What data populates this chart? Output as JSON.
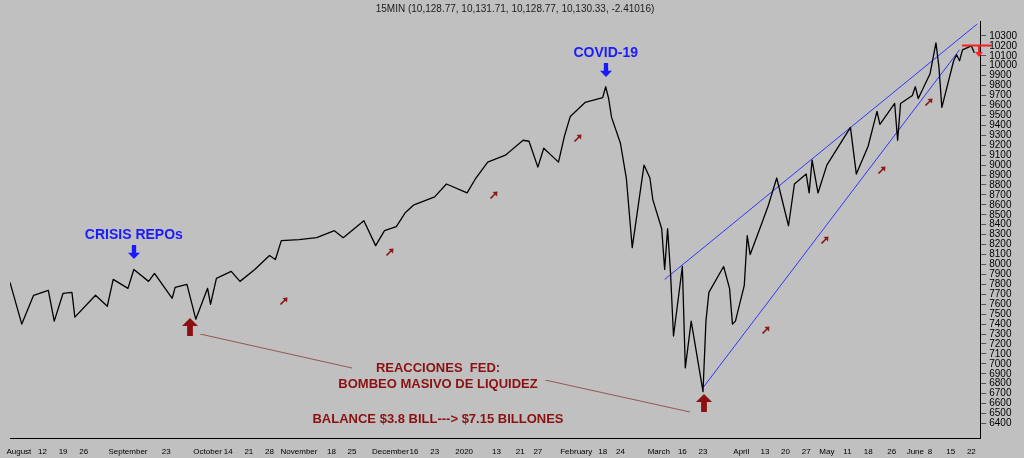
{
  "chart_data": {
    "type": "line",
    "title": "15MIN (10,128.77, 10,131.71, 10,128.77, 10,130.33, -2.41016)",
    "x": [
      "2019-08-01",
      "2019-08-05",
      "2019-08-09",
      "2019-08-14",
      "2019-08-16",
      "2019-08-19",
      "2019-08-22",
      "2019-08-23",
      "2019-08-30",
      "2019-09-03",
      "2019-09-05",
      "2019-09-10",
      "2019-09-12",
      "2019-09-17",
      "2019-09-19",
      "2019-09-25",
      "2019-09-26",
      "2019-09-30",
      "2019-10-03",
      "2019-10-07",
      "2019-10-08",
      "2019-10-10",
      "2019-10-15",
      "2019-10-18",
      "2019-10-23",
      "2019-10-28",
      "2019-10-30",
      "2019-11-01",
      "2019-11-07",
      "2019-11-13",
      "2019-11-19",
      "2019-11-22",
      "2019-11-29",
      "2019-12-03",
      "2019-12-06",
      "2019-12-10",
      "2019-12-13",
      "2019-12-16",
      "2019-12-23",
      "2019-12-27",
      "2020-01-03",
      "2020-01-06",
      "2020-01-10",
      "2020-01-16",
      "2020-01-22",
      "2020-01-24",
      "2020-01-27",
      "2020-01-29",
      "2020-02-03",
      "2020-02-05",
      "2020-02-07",
      "2020-02-12",
      "2020-02-18",
      "2020-02-19",
      "2020-02-20",
      "2020-02-21",
      "2020-02-24",
      "2020-02-26",
      "2020-02-28",
      "2020-03-03",
      "2020-03-05",
      "2020-03-06",
      "2020-03-09",
      "2020-03-10",
      "2020-03-11",
      "2020-03-12",
      "2020-03-13",
      "2020-03-16",
      "2020-03-17",
      "2020-03-19",
      "2020-03-23",
      "2020-03-24",
      "2020-03-25",
      "2020-03-30",
      "2020-04-01",
      "2020-04-02",
      "2020-04-03",
      "2020-04-06",
      "2020-04-07",
      "2020-04-08",
      "2020-04-14",
      "2020-04-17",
      "2020-04-21",
      "2020-04-23",
      "2020-04-27",
      "2020-04-28",
      "2020-04-29",
      "2020-05-01",
      "2020-05-04",
      "2020-05-12",
      "2020-05-14",
      "2020-05-18",
      "2020-05-21",
      "2020-05-22",
      "2020-05-27",
      "2020-05-28",
      "2020-05-29",
      "2020-06-02",
      "2020-06-03",
      "2020-06-04",
      "2020-06-08",
      "2020-06-10",
      "2020-06-11",
      "2020-06-12",
      "2020-06-16",
      "2020-06-17",
      "2020-06-18",
      "2020-06-19",
      "2020-06-22",
      "2020-06-23"
    ],
    "series": [
      {
        "color": "#000000",
        "values": [
          7820,
          7400,
          7690,
          7740,
          7430,
          7710,
          7720,
          7470,
          7690,
          7580,
          7850,
          7760,
          7950,
          7830,
          7910,
          7660,
          7770,
          7800,
          7450,
          7760,
          7600,
          7860,
          7930,
          7830,
          7950,
          8090,
          8050,
          8240,
          8250,
          8270,
          8340,
          8270,
          8440,
          8190,
          8340,
          8380,
          8520,
          8600,
          8680,
          8810,
          8720,
          8870,
          9030,
          9100,
          9250,
          9240,
          8980,
          9170,
          9030,
          9290,
          9490,
          9630,
          9680,
          9790,
          9670,
          9480,
          9220,
          8870,
          8170,
          9000,
          8870,
          8650,
          8360,
          7950,
          8360,
          7910,
          7280,
          7980,
          6960,
          7430,
          6720,
          7430,
          7720,
          7980,
          7760,
          7400,
          7430,
          7790,
          8290,
          8100,
          8580,
          8870,
          8390,
          8810,
          8910,
          8720,
          9050,
          8720,
          9000,
          9380,
          8910,
          9190,
          9540,
          9410,
          9620,
          9250,
          9620,
          9700,
          9790,
          9670,
          9920,
          10230,
          9990,
          9580,
          10050,
          10110,
          10050,
          10160,
          10200,
          10130
        ]
      },
      {
        "type": "line",
        "color": "#3333ff",
        "x": [
          "2020-03-10",
          "2020-06-24"
        ],
        "values": [
          7850,
          10420
        ]
      },
      {
        "type": "line",
        "color": "#3333ff",
        "x": [
          "2020-03-23",
          "2020-06-18"
        ],
        "values": [
          6760,
          10160
        ]
      }
    ],
    "annotations": [
      {
        "text": "CRISIS REPOs",
        "x": "2019-09-12",
        "y": 7950
      },
      {
        "text": "COVID-19",
        "x": "2020-02-19",
        "y": 9790
      },
      "REACCIONES  FED:",
      "BOMBEO MASIVO DE LIQUIDEZ",
      "BALANCE $3.8 BILL---> $7.15 BILLONES"
    ],
    "marker": "none",
    "xlim": [
      "2019-08-01",
      "2020-06-25"
    ],
    "xticks": [
      {
        "value": "2019-08-04",
        "label": "August"
      },
      {
        "value": "2019-08-12",
        "label": "12"
      },
      {
        "value": "2019-08-19",
        "label": "19"
      },
      {
        "value": "2019-08-26",
        "label": "26"
      },
      {
        "value": "2019-09-10",
        "label": "September"
      },
      {
        "value": "2019-09-23",
        "label": "23"
      },
      {
        "value": "2019-10-07",
        "label": "October"
      },
      {
        "value": "2019-10-14",
        "label": "14"
      },
      {
        "value": "2019-10-21",
        "label": "21"
      },
      {
        "value": "2019-10-28",
        "label": "28"
      },
      {
        "value": "2019-11-07",
        "label": "November"
      },
      {
        "value": "2019-11-18",
        "label": "18"
      },
      {
        "value": "2019-11-25",
        "label": "25"
      },
      {
        "value": "2019-12-08",
        "label": "December"
      },
      {
        "value": "2019-12-16",
        "label": "16"
      },
      {
        "value": "2019-12-23",
        "label": "23"
      },
      {
        "value": "2020-01-02",
        "label": "2020"
      },
      {
        "value": "2020-01-13",
        "label": "13"
      },
      {
        "value": "2020-01-21",
        "label": "21"
      },
      {
        "value": "2020-01-27",
        "label": "27"
      },
      {
        "value": "2020-02-09",
        "label": "February"
      },
      {
        "value": "2020-02-18",
        "label": "18"
      },
      {
        "value": "2020-02-24",
        "label": "24"
      },
      {
        "value": "2020-03-08",
        "label": "March"
      },
      {
        "value": "2020-03-16",
        "label": "16"
      },
      {
        "value": "2020-03-23",
        "label": "23"
      },
      {
        "value": "2020-04-05",
        "label": "April"
      },
      {
        "value": "2020-04-13",
        "label": "13"
      },
      {
        "value": "2020-04-20",
        "label": "20"
      },
      {
        "value": "2020-04-27",
        "label": "27"
      },
      {
        "value": "2020-05-04",
        "label": "May"
      },
      {
        "value": "2020-05-11",
        "label": "11"
      },
      {
        "value": "2020-05-18",
        "label": "18"
      },
      {
        "value": "2020-05-26",
        "label": "26"
      },
      {
        "value": "2020-06-03",
        "label": "June"
      },
      {
        "value": "2020-06-08",
        "label": "8"
      },
      {
        "value": "2020-06-15",
        "label": "15"
      },
      {
        "value": "2020-06-22",
        "label": "22"
      }
    ],
    "ylim": [
      6250,
      10450
    ],
    "yticks": [
      6400,
      6500,
      6600,
      6700,
      6800,
      6900,
      7000,
      7100,
      7200,
      7300,
      7400,
      7500,
      7600,
      7700,
      7800,
      7900,
      8000,
      8100,
      8200,
      8300,
      8400,
      8500,
      8600,
      8700,
      8800,
      8900,
      9000,
      9100,
      9200,
      9300,
      9400,
      9500,
      9600,
      9700,
      9800,
      9900,
      10000,
      10100,
      10200,
      10300
    ]
  }
}
